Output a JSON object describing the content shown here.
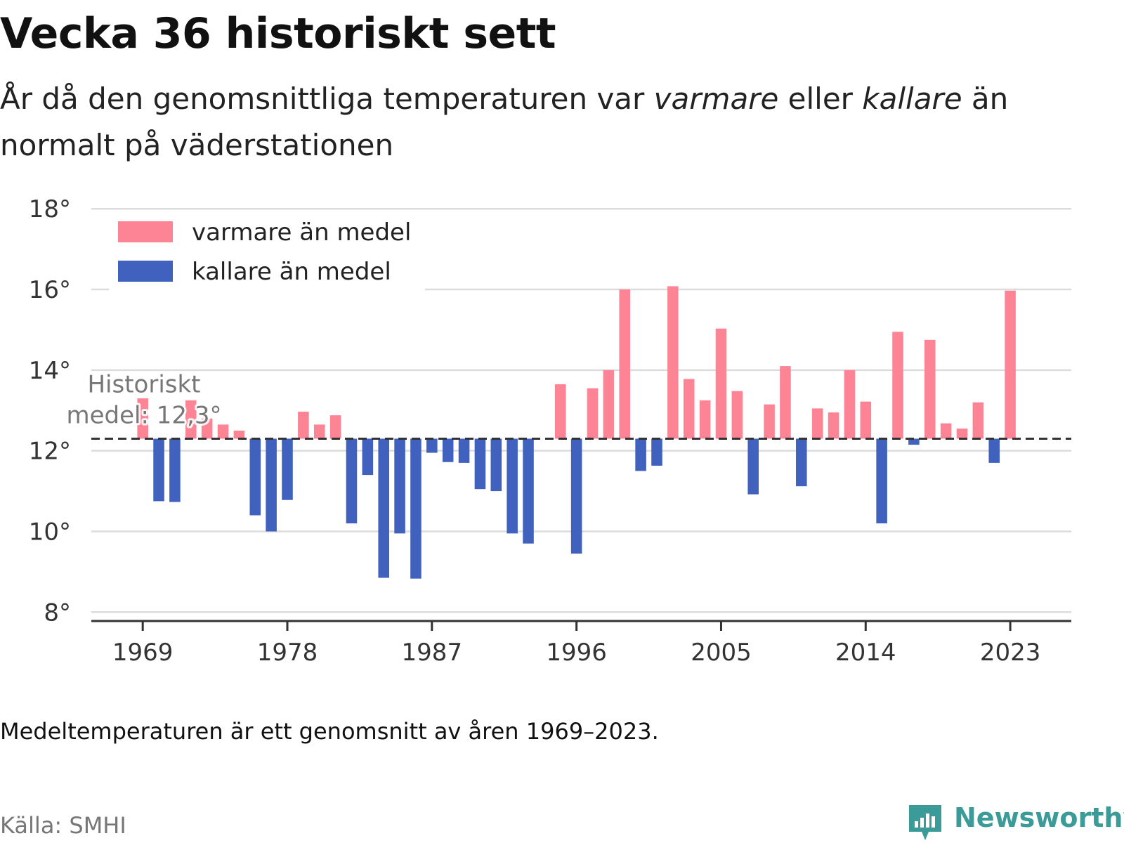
{
  "header": {
    "title": "Vecka 36 historiskt sett",
    "subtitle_parts": [
      "År då den genomsnittliga temperaturen var ",
      "varmare",
      " eller ",
      "kallare",
      " än normalt på väderstationen"
    ]
  },
  "footer": {
    "note": "Medeltemperaturen är ett genomsnitt av åren 1969–2023.",
    "source": "Källa: SMHI",
    "brand": "Newsworthy"
  },
  "colors": {
    "warm": "#fc8495",
    "cold": "#4061be",
    "brand": "#3a9b98"
  },
  "chart_data": {
    "type": "bar",
    "baseline": 12.3,
    "baseline_label": [
      "Historiskt",
      "medel: 12,3°"
    ],
    "ylim": [
      7.5,
      18.3
    ],
    "yticks": [
      8,
      10,
      12,
      14,
      16,
      18
    ],
    "ytick_labels": [
      "8°",
      "10°",
      "12°",
      "14°",
      "16°",
      "18°"
    ],
    "xticks": [
      1969,
      1978,
      1987,
      1996,
      2005,
      2014,
      2023
    ],
    "xtick_labels": [
      "1969",
      "1978",
      "1987",
      "1996",
      "2005",
      "2014",
      "2023"
    ],
    "xlim": [
      1965.8,
      2026.8
    ],
    "grid": true,
    "legend": {
      "position": "top-left",
      "items": [
        {
          "key": "warm",
          "label": "varmare än medel"
        },
        {
          "key": "cold",
          "label": "kallare än medel"
        }
      ]
    },
    "years": [
      1969,
      1970,
      1971,
      1972,
      1973,
      1974,
      1975,
      1976,
      1977,
      1978,
      1979,
      1980,
      1981,
      1982,
      1983,
      1984,
      1985,
      1986,
      1987,
      1988,
      1989,
      1990,
      1991,
      1992,
      1993,
      1994,
      1995,
      1996,
      1997,
      1998,
      1999,
      2000,
      2001,
      2002,
      2003,
      2004,
      2005,
      2006,
      2007,
      2008,
      2009,
      2010,
      2011,
      2012,
      2013,
      2014,
      2015,
      2016,
      2017,
      2018,
      2019,
      2020,
      2021,
      2022,
      2023
    ],
    "values": [
      13.3,
      10.75,
      10.73,
      13.25,
      12.8,
      12.65,
      12.5,
      10.4,
      10.0,
      10.78,
      12.97,
      12.65,
      12.88,
      10.2,
      11.4,
      8.85,
      9.95,
      8.83,
      11.95,
      11.72,
      11.7,
      11.05,
      11.0,
      9.95,
      9.7,
      null,
      13.65,
      9.45,
      13.55,
      14.0,
      16.0,
      11.5,
      11.63,
      16.08,
      13.78,
      13.25,
      15.03,
      13.48,
      10.92,
      13.15,
      14.1,
      11.12,
      13.05,
      12.95,
      14.0,
      13.22,
      10.2,
      14.95,
      12.15,
      14.75,
      12.68,
      12.55,
      13.2,
      11.7,
      15.97
    ]
  }
}
